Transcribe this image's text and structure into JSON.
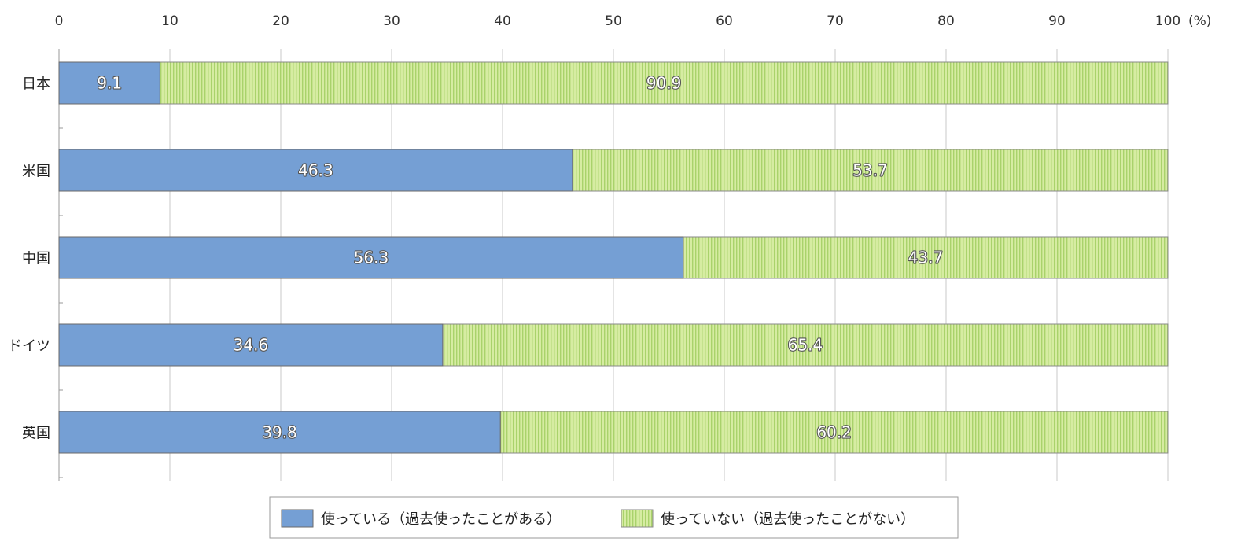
{
  "chart_data": {
    "type": "bar",
    "orientation": "horizontal",
    "stacked": true,
    "categories": [
      "日本",
      "米国",
      "中国",
      "ドイツ",
      "英国"
    ],
    "series": [
      {
        "name": "使っている（過去使ったことがある）",
        "values": [
          9.1,
          46.3,
          56.3,
          34.6,
          39.8
        ],
        "color": "#759fd4"
      },
      {
        "name": "使っていない（過去使ったことがない）",
        "values": [
          90.9,
          53.7,
          43.7,
          65.4,
          60.2
        ],
        "color": "#d3ea9c"
      }
    ],
    "value_labels": {
      "series0": [
        "9.1",
        "46.3",
        "56.3",
        "34.6",
        "39.8"
      ],
      "series1": [
        "90.9",
        "53.7",
        "43.7",
        "65.4",
        "60.2"
      ]
    },
    "x_axis": {
      "min": 0,
      "max": 100,
      "ticks": [
        "0",
        "10",
        "20",
        "30",
        "40",
        "50",
        "60",
        "70",
        "80",
        "90",
        "100"
      ],
      "unit_label": "(%)",
      "position": "top"
    },
    "grid": true,
    "legend": "bottom-center"
  }
}
